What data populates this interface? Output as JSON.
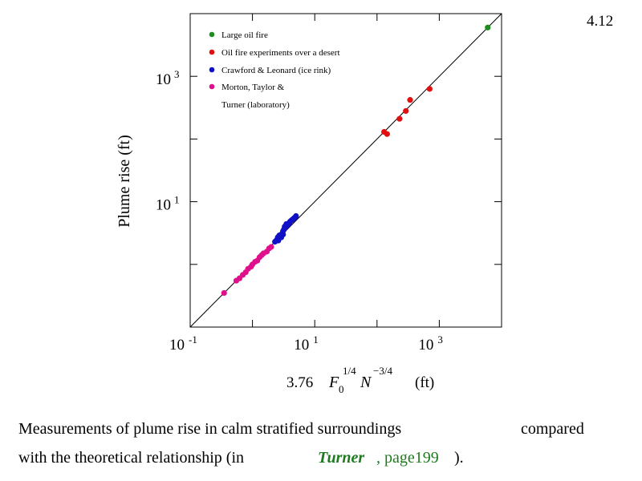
{
  "slide_number": "4.12",
  "chart_data": {
    "type": "scatter",
    "title": "",
    "xlabel": {
      "prefix": "3.76",
      "base1": "F",
      "sub1": "0",
      "exp1": "1/4",
      "base2": "N",
      "exp2": "−3/4",
      "unit": "(ft)"
    },
    "ylabel": "Plume rise  (ft)",
    "xscale": "log",
    "yscale": "log",
    "xlim": [
      0.1,
      10000
    ],
    "ylim": [
      0.1,
      10000
    ],
    "x_ticks": [
      {
        "base": "10",
        "exp": "-1",
        "value": 0.1
      },
      {
        "base": "10",
        "exp": "1",
        "value": 10
      },
      {
        "base": "10",
        "exp": "3",
        "value": 1000
      }
    ],
    "y_ticks": [
      {
        "base": "10",
        "exp": "1",
        "value": 10
      },
      {
        "base": "10",
        "exp": "3",
        "value": 1000
      }
    ],
    "grid": false,
    "legend_position": "top-left",
    "reference_line": "y = x",
    "series": [
      {
        "name": "Large oil fire",
        "color": "#1e8c1e",
        "x": [
          6000
        ],
        "y": [
          6000
        ]
      },
      {
        "name": "Oil fire experiments over a desert",
        "color": "#e01010",
        "x": [
          130,
          145,
          230,
          290,
          340,
          700
        ],
        "y": [
          130,
          120,
          210,
          280,
          420,
          630
        ]
      },
      {
        "name": "Crawford & Leonard (ice rink)",
        "color": "#1010c8",
        "x": [
          2.3,
          2.45,
          2.55,
          2.6,
          2.7,
          2.8,
          2.9,
          3.0,
          3.1,
          3.2,
          3.3,
          3.4,
          3.5,
          3.6,
          3.7,
          3.8,
          3.9,
          4.0,
          4.2,
          4.4,
          4.6,
          4.8,
          5.0,
          2.6,
          2.9,
          3.1,
          3.3,
          3.5
        ],
        "y": [
          2.3,
          2.45,
          2.7,
          2.65,
          2.9,
          2.8,
          3.0,
          3.1,
          3.4,
          3.6,
          4.0,
          4.0,
          4.2,
          4.2,
          4.3,
          4.4,
          4.6,
          4.8,
          5.0,
          5.2,
          5.4,
          5.6,
          5.9,
          2.4,
          2.7,
          3.0,
          3.8,
          4.4
        ]
      },
      {
        "name": "Morton, Taylor & Turner (laboratory)",
        "color": "#e0108c",
        "x": [
          0.35,
          0.55,
          0.62,
          0.7,
          0.78,
          0.85,
          0.95,
          1.0,
          1.1,
          1.2,
          1.3,
          1.4,
          1.5,
          1.7,
          1.85,
          2.0
        ],
        "y": [
          0.35,
          0.55,
          0.6,
          0.68,
          0.75,
          0.85,
          0.92,
          1.0,
          1.1,
          1.15,
          1.3,
          1.4,
          1.5,
          1.6,
          1.8,
          1.9
        ]
      }
    ],
    "legend": [
      {
        "label": "Large oil fire",
        "color": "#1e8c1e"
      },
      {
        "label": "Oil fire experiments over a desert",
        "color": "#e01010"
      },
      {
        "label": "Crawford & Leonard (ice rink)",
        "color": "#1010c8"
      },
      {
        "label": "Morton, Taylor &",
        "color": "#e0108c"
      },
      {
        "label": "Turner (laboratory)",
        "color": ""
      }
    ]
  },
  "caption": {
    "line1a": "Measurements of plume rise in calm stratified surroundings",
    "line1b": "compared",
    "line2a": "with the theoretical relationship (in",
    "line2_ref_name": "Turner",
    "line2_ref_page": ", page199",
    "line2_close": ")."
  }
}
